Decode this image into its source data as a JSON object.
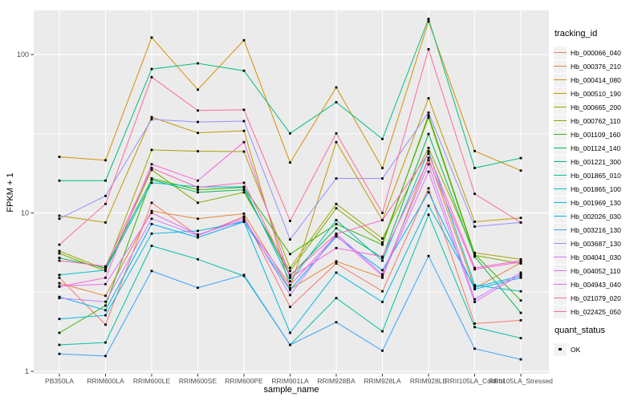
{
  "chart_data": {
    "type": "line",
    "title": "",
    "xlabel": "sample_name",
    "ylabel": "FPKM + 1",
    "y_scale": "log10",
    "ylim": [
      0.93,
      190
    ],
    "y_ticks": [
      {
        "value": 1,
        "label": "1"
      },
      {
        "value": 10,
        "label": "10"
      },
      {
        "value": 100,
        "label": "100"
      }
    ],
    "y_minor_breaks": [
      3.1623,
      31.623
    ],
    "grid": true,
    "legend_position": "right",
    "legend_title": "tracking_id",
    "point_marker": "black-square",
    "categories": [
      "PB350LA",
      "RRIM600LA",
      "RRIM600LE",
      "RRIM600SE",
      "RRIM600PE",
      "RRIM901LA",
      "RRIM928BA",
      "RRIM928LA",
      "RRIM928LE",
      "RRII105LA_Control",
      "RRII105LA_Stressed"
    ],
    "series": [
      {
        "name": "Hb_000066_040",
        "color": "#F8766D",
        "values": [
          3.9,
          1.97,
          11.6,
          7.2,
          9.5,
          2.55,
          4.8,
          3.2,
          14.3,
          2.0,
          2.1
        ]
      },
      {
        "name": "Hb_000376_210",
        "color": "#EA8331",
        "values": [
          3.6,
          3.0,
          10.3,
          9.2,
          9.9,
          3.3,
          4.95,
          3.9,
          22.3,
          3.35,
          4.85
        ]
      },
      {
        "name": "Hb_000414_080",
        "color": "#D89000",
        "values": [
          22.6,
          21.5,
          128,
          60,
          123,
          20.8,
          62,
          19.2,
          162,
          24.6,
          18.5
        ]
      },
      {
        "name": "Hb_000510_190",
        "color": "#C09B00",
        "values": [
          9.6,
          8.7,
          40.3,
          32,
          33,
          3.35,
          28,
          9.0,
          53,
          8.8,
          9.3
        ]
      },
      {
        "name": "Hb_000665_200",
        "color": "#A3A500",
        "values": [
          5.75,
          4.4,
          25,
          24.5,
          24.4,
          4.5,
          11.4,
          6.9,
          25.7,
          5.6,
          5.1
        ]
      },
      {
        "name": "Hb_000762_110",
        "color": "#7CAE00",
        "values": [
          5.55,
          4.3,
          18.7,
          11.6,
          13.5,
          4.3,
          10.7,
          6.5,
          40,
          5.4,
          4.8
        ]
      },
      {
        "name": "Hb_001109_160",
        "color": "#39B600",
        "values": [
          1.75,
          2.6,
          16.5,
          14,
          14.5,
          5.5,
          8.5,
          6.3,
          41.3,
          5.5,
          2.8
        ]
      },
      {
        "name": "Hb_001124_140",
        "color": "#00BB4E",
        "values": [
          5.2,
          4.5,
          16.2,
          13.5,
          14,
          4.0,
          8.0,
          5.2,
          31.5,
          5.3,
          2.34
        ]
      },
      {
        "name": "Hb_001221_300",
        "color": "#00BF7D",
        "values": [
          16,
          16,
          81,
          88,
          79,
          31.8,
          50,
          29.3,
          168,
          19.2,
          22.2
        ]
      },
      {
        "name": "Hb_001865_010",
        "color": "#00C1A3",
        "values": [
          1.47,
          1.52,
          6.2,
          5.1,
          4.0,
          1.47,
          2.9,
          1.79,
          9.75,
          1.9,
          1.62
        ]
      },
      {
        "name": "Hb_001865_100",
        "color": "#00BFC4",
        "values": [
          4.06,
          4.35,
          15.5,
          14.6,
          14.6,
          3.7,
          9.0,
          5.0,
          24.5,
          3.5,
          3.2
        ]
      },
      {
        "name": "Hb_001969_130",
        "color": "#00BAE0",
        "values": [
          2.14,
          2.26,
          7.4,
          7.7,
          8.8,
          1.75,
          4.2,
          2.74,
          11.1,
          3.4,
          4.0
        ]
      },
      {
        "name": "Hb_002026_030",
        "color": "#00B0F6",
        "values": [
          2.95,
          2.43,
          8.5,
          7.0,
          8.8,
          3.27,
          7.1,
          4.35,
          13.5,
          3.3,
          3.9
        ]
      },
      {
        "name": "Hb_003216_130",
        "color": "#35A2FF",
        "values": [
          1.29,
          1.25,
          4.3,
          3.37,
          4.06,
          1.47,
          2.04,
          1.35,
          5.35,
          1.39,
          1.19
        ]
      },
      {
        "name": "Hb_003687_130",
        "color": "#9590FF",
        "values": [
          9.2,
          12.8,
          39,
          37.5,
          38,
          6.8,
          16.5,
          16.5,
          43,
          8.2,
          8.7
        ]
      },
      {
        "name": "Hb_004041_030",
        "color": "#C77CFF",
        "values": [
          2.9,
          2.75,
          9.2,
          7.2,
          9.3,
          3.03,
          7.4,
          4.1,
          20.3,
          2.85,
          4.2
        ]
      },
      {
        "name": "Hb_004052_110",
        "color": "#E76BF3",
        "values": [
          3.45,
          3.55,
          10,
          7.3,
          9.0,
          3.5,
          7.2,
          4.0,
          18.2,
          2.74,
          4.1
        ]
      },
      {
        "name": "Hb_004943_040",
        "color": "#FA62DB",
        "values": [
          3.42,
          3.9,
          20.3,
          16,
          28,
          3.9,
          6.0,
          5.3,
          21.5,
          4.4,
          4.9
        ]
      },
      {
        "name": "Hb_021079_020",
        "color": "#FF62BC",
        "values": [
          5.0,
          4.6,
          19.2,
          14.5,
          15.5,
          4.05,
          7.35,
          9.0,
          23.7,
          4.5,
          5.0
        ]
      },
      {
        "name": "Hb_022425_050",
        "color": "#FF6A98",
        "values": [
          6.3,
          11.4,
          72,
          44.3,
          44.8,
          8.9,
          31.8,
          10,
          108,
          13.2,
          8.7
        ]
      }
    ],
    "quant_legend": {
      "title": "quant_status",
      "items": [
        {
          "label": "OK",
          "marker": "black-square"
        }
      ]
    }
  },
  "style_colors": {
    "panel_bg": "#EBEBEB",
    "gridline": "#FFFFFF",
    "tick_label": "#4D4D4D",
    "tick_mark": "#333333",
    "marker": "#000000",
    "legend_key_bg": "#F2F2F2"
  }
}
